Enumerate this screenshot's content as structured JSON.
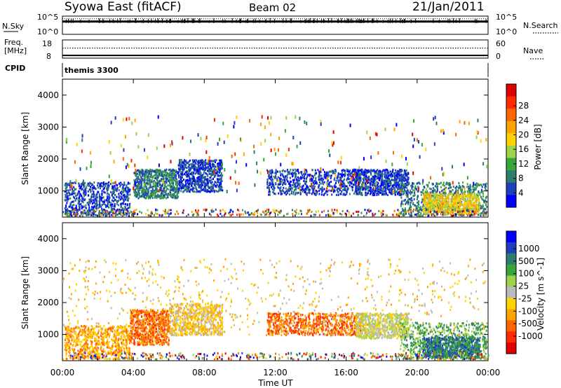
{
  "header": {
    "station": "Syowa East (fitACF)",
    "beam": "Beam 02",
    "date": "21/Jan/2011"
  },
  "noise_panel": {
    "left_label": "N.Sky",
    "left_ticks": [
      "10^5",
      "10^0"
    ],
    "right_ticks": [
      "10^5",
      "10^0"
    ],
    "right_label": "N.Search"
  },
  "freq_panel": {
    "left_label_1": "Freq.",
    "left_label_2": "[MHz]",
    "left_ticks": [
      "18",
      "8"
    ],
    "right_ticks": [
      "60",
      "0"
    ],
    "right_label": "Nave"
  },
  "cpid_panel": {
    "label": "CPID",
    "text": "themis 3300"
  },
  "x_axis": {
    "title": "Time UT",
    "ticks": [
      "00:00",
      "04:00",
      "08:00",
      "12:00",
      "16:00",
      "20:00",
      "00:00"
    ]
  },
  "chart_data": [
    {
      "type": "heatmap",
      "panel": "power",
      "xlabel": "Time UT",
      "ylabel": "Slant Range [km]",
      "x_range_hours": [
        0,
        24
      ],
      "ylim": [
        180,
        4500
      ],
      "y_ticks": [
        1000,
        2000,
        3000,
        4000
      ],
      "colorbar": {
        "label": "Power [dB]",
        "ticks": [
          "4",
          "8",
          "12",
          "16",
          "20",
          "24",
          "28"
        ],
        "colors": [
          "#0000ff",
          "#1f3fbf",
          "#2e7d6e",
          "#3aa63a",
          "#9bd34a",
          "#ffd400",
          "#ffa500",
          "#ff6600",
          "#ff2a00",
          "#e00000"
        ]
      },
      "scatter_regions": [
        {
          "t0": 0.1,
          "t1": 3.8,
          "r0": 250,
          "r1": 1300,
          "level": 1
        },
        {
          "t0": 4.0,
          "t1": 6.5,
          "r0": 800,
          "r1": 1700,
          "level": 2
        },
        {
          "t0": 6.5,
          "t1": 9.0,
          "r0": 1000,
          "r1": 2000,
          "level": 1
        },
        {
          "t0": 11.5,
          "t1": 16.8,
          "r0": 900,
          "r1": 1700,
          "level": 1
        },
        {
          "t0": 16.5,
          "t1": 19.5,
          "r0": 900,
          "r1": 1700,
          "level": 1
        },
        {
          "t0": 19.0,
          "t1": 23.9,
          "r0": 250,
          "r1": 1300,
          "level": 2
        },
        {
          "t0": 20.3,
          "t1": 23.5,
          "r0": 300,
          "r1": 950,
          "level": 5
        },
        {
          "t0": 0.0,
          "t1": 23.9,
          "r0": 1000,
          "r1": 3400,
          "level": 0
        }
      ]
    },
    {
      "type": "heatmap",
      "panel": "velocity",
      "xlabel": "Time UT",
      "ylabel": "Slant Range [km]",
      "x_range_hours": [
        0,
        24
      ],
      "ylim": [
        180,
        4500
      ],
      "y_ticks": [
        1000,
        2000,
        3000,
        4000
      ],
      "colorbar": {
        "label": "Velocity [m s^-1]",
        "ticks": [
          "1000",
          "500",
          "100",
          "25",
          "-25",
          "-100",
          "-500",
          "-1000"
        ],
        "colors": [
          "#0000ff",
          "#1f3fbf",
          "#2e7d6e",
          "#3aa63a",
          "#9bd34a",
          "#bbbbbb",
          "#ffd400",
          "#ffa500",
          "#ff6600",
          "#ff2a00",
          "#e00000"
        ]
      },
      "scatter_regions": [
        {
          "t0": 0.1,
          "t1": 3.8,
          "r0": 250,
          "r1": 1300,
          "level": 7
        },
        {
          "t0": 3.8,
          "t1": 6.0,
          "r0": 700,
          "r1": 1800,
          "level": 8
        },
        {
          "t0": 6.0,
          "t1": 9.0,
          "r0": 1000,
          "r1": 2000,
          "level": 6
        },
        {
          "t0": 11.5,
          "t1": 16.8,
          "r0": 1000,
          "r1": 1700,
          "level": 8
        },
        {
          "t0": 16.5,
          "t1": 19.5,
          "r0": 900,
          "r1": 1700,
          "level": 5
        },
        {
          "t0": 19.0,
          "t1": 23.9,
          "r0": 250,
          "r1": 1400,
          "level": 3
        },
        {
          "t0": 20.3,
          "t1": 23.5,
          "r0": 300,
          "r1": 950,
          "level": 2
        },
        {
          "t0": 0.0,
          "t1": 23.9,
          "r0": 1000,
          "r1": 3400,
          "level": 6
        }
      ]
    }
  ],
  "noise_level": 0.7,
  "freq_level": 0.15,
  "nave_level": 0.55
}
